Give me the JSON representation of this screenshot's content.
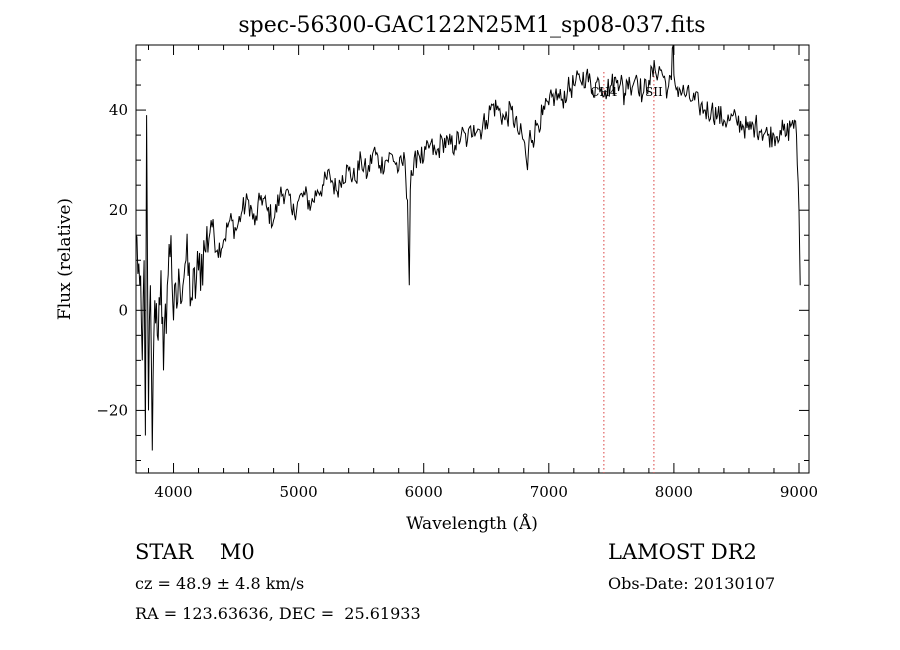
{
  "chart_data": {
    "type": "line",
    "title": "spec-56300-GAC122N25M1_sp08-037.fits",
    "xlabel": "Wavelength (Å)",
    "ylabel": "Flux (relative)",
    "xlim": [
      3700,
      9080
    ],
    "ylim": [
      -32.5,
      53
    ],
    "xticks": [
      4000,
      5000,
      6000,
      7000,
      8000,
      9000
    ],
    "xtick_labels": [
      "4000",
      "5000",
      "6000",
      "7000",
      "8000",
      "9000"
    ],
    "yticks": [
      -20,
      0,
      20,
      40
    ],
    "ytick_labels": [
      "−20",
      "0",
      "20",
      "40"
    ],
    "grid": false,
    "series": [
      {
        "x": [
          3700,
          3730,
          3750,
          3765,
          3775,
          3785,
          3800,
          3815,
          3830,
          3850,
          3870,
          3900,
          3920,
          3950,
          3980,
          4000,
          4050,
          4100,
          4150,
          4200,
          4250,
          4300,
          4350,
          4400,
          4450,
          4500,
          4550,
          4600,
          4650,
          4700,
          4750,
          4800,
          4850,
          4900,
          4950,
          5000,
          5050,
          5100,
          5150,
          5200,
          5250,
          5300,
          5350,
          5400,
          5450,
          5500,
          5550,
          5600,
          5650,
          5700,
          5750,
          5800,
          5850,
          5870,
          5885,
          5893,
          5900,
          5915,
          5950,
          6000,
          6050,
          6100,
          6150,
          6200,
          6250,
          6300,
          6350,
          6400,
          6450,
          6500,
          6550,
          6600,
          6650,
          6700,
          6750,
          6800,
          6830,
          6850,
          6870,
          6900,
          6950,
          7000,
          7050,
          7100,
          7150,
          7200,
          7250,
          7300,
          7350,
          7400,
          7450,
          7500,
          7550,
          7580,
          7600,
          7620,
          7650,
          7700,
          7750,
          7800,
          7850,
          7900,
          7950,
          7980,
          7995,
          8000,
          8010,
          8050,
          8100,
          8150,
          8200,
          8250,
          8300,
          8350,
          8400,
          8450,
          8500,
          8550,
          8600,
          8650,
          8700,
          8750,
          8800,
          8850,
          8900,
          8950,
          8980,
          9000,
          9010
        ],
        "y": [
          15,
          5,
          -10,
          10,
          -25,
          39,
          -20,
          5,
          -28,
          2,
          -5,
          8,
          -12,
          5,
          15,
          -2,
          5,
          10,
          2,
          8,
          12,
          18,
          12,
          14,
          18,
          16,
          20,
          22,
          17,
          23,
          20,
          18,
          23,
          24,
          19,
          22,
          23,
          21,
          24,
          25,
          27,
          24,
          27,
          28,
          26,
          30,
          27,
          32,
          29,
          30,
          31,
          28,
          30,
          22,
          5,
          24,
          28,
          27,
          32,
          30,
          33,
          31,
          34,
          33,
          33,
          35,
          34,
          37,
          36,
          38,
          41,
          40,
          38,
          40,
          36,
          34,
          28,
          36,
          34,
          37,
          39,
          41,
          43,
          42,
          44,
          45,
          46,
          47,
          44,
          46,
          44,
          45,
          46,
          47,
          41,
          46,
          45,
          47,
          43,
          46,
          48,
          48,
          44,
          46,
          55,
          47,
          45,
          44,
          43,
          42,
          41,
          40,
          40,
          39,
          38,
          38,
          38,
          37,
          36,
          37,
          36,
          35,
          35,
          36,
          35,
          38,
          35,
          20,
          5
        ]
      }
    ],
    "reference_lines": [
      {
        "x": 7440,
        "label": "CH4",
        "color": "#e06060"
      },
      {
        "x": 7840,
        "label": "SII",
        "color": "#e06060"
      }
    ]
  },
  "info": {
    "class": "STAR    M0",
    "cz": "cz = 48.9 ± 4.8 km/s",
    "coords": "RA = 123.63636, DEC =  25.61933",
    "survey": "LAMOST DR2",
    "obs_date": "Obs-Date: 20130107"
  }
}
